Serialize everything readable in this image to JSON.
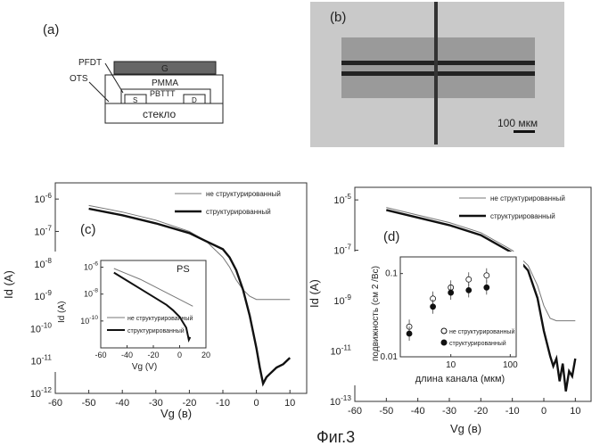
{
  "figure_caption": "Фиг.3",
  "panel_a": {
    "label": "(a)",
    "layers": {
      "gate": "G",
      "dielectric": "PMMA",
      "semiconductor": "PBTTT",
      "source": "S",
      "drain": "D",
      "substrate": "стекло"
    },
    "callouts": [
      "PFDT",
      "OTS"
    ]
  },
  "panel_b": {
    "label": "(b)",
    "scale_bar": "100 мкм"
  },
  "chart_data": [
    {
      "type": "line",
      "panel": "(c)",
      "xlabel": "Vg (в)",
      "ylabel": "Id (A)",
      "xlim": [
        -60,
        15
      ],
      "ylim_exp": [
        -12,
        -5.5
      ],
      "log_y": true,
      "x_ticks": [
        "-60",
        "-50",
        "-40",
        "-30",
        "-20",
        "-10",
        "0",
        "10"
      ],
      "y_ticks": [
        "10-6",
        "10-7",
        "10-8",
        "10-9",
        "10-10",
        "10-11",
        "10-12"
      ],
      "legend_position": "top-right",
      "series": [
        {
          "name": "не структурированный",
          "style": "thin",
          "x": [
            -50,
            -40,
            -30,
            -20,
            -15,
            -10,
            -8,
            -6,
            -4,
            -2,
            0,
            5,
            10
          ],
          "y_exp": [
            -6.2,
            -6.4,
            -6.65,
            -7.0,
            -7.3,
            -7.8,
            -8.1,
            -8.5,
            -8.8,
            -9.0,
            -9.1,
            -9.1,
            -9.1
          ]
        },
        {
          "name": "структурированный",
          "style": "thick",
          "x": [
            -50,
            -40,
            -30,
            -20,
            -15,
            -10,
            -8,
            -6,
            -4,
            -2,
            0,
            1,
            2,
            3,
            4,
            6,
            8,
            10
          ],
          "y_exp": [
            -6.3,
            -6.5,
            -6.75,
            -7.05,
            -7.3,
            -7.55,
            -7.8,
            -8.2,
            -8.8,
            -9.6,
            -10.6,
            -11.2,
            -11.7,
            -11.5,
            -11.4,
            -11.2,
            -11.1,
            -10.9
          ]
        }
      ],
      "inset": {
        "label": "PS",
        "xlabel": "Vg (V)",
        "ylabel": "Id (A)",
        "xlim": [
          -60,
          20
        ],
        "ylim_exp": [
          -12,
          -5.5
        ],
        "x_ticks": [
          "-60",
          "-40",
          "-20",
          "0",
          "20"
        ],
        "y_ticks": [
          "10-6",
          "10-8",
          "10-10"
        ],
        "legend": [
          "не структурированный",
          "структурированный"
        ],
        "series": [
          {
            "name": "не структурированный",
            "style": "thin",
            "x": [
              -50,
              -40,
              -30,
              -20,
              -10,
              0,
              10
            ],
            "y_exp": [
              -6.1,
              -6.5,
              -6.9,
              -7.4,
              -7.9,
              -8.4,
              -8.9
            ]
          },
          {
            "name": "структурированный",
            "style": "thick",
            "x": [
              -50,
              -40,
              -30,
              -20,
              -10,
              -5,
              0,
              5,
              7,
              8
            ],
            "y_exp": [
              -6.4,
              -7.0,
              -7.6,
              -8.2,
              -8.8,
              -9.2,
              -9.7,
              -10.5,
              -11.4,
              -11.2
            ]
          }
        ]
      }
    },
    {
      "type": "line",
      "panel": "(d)",
      "xlabel": "Vg (в)",
      "ylabel": "Id (A)",
      "xlim": [
        -60,
        15
      ],
      "ylim_exp": [
        -13,
        -4.5
      ],
      "log_y": true,
      "x_ticks": [
        "-60",
        "-50",
        "-40",
        "-30",
        "-20",
        "-10",
        "0",
        "10"
      ],
      "y_ticks": [
        "10-5",
        "10-7",
        "10-9",
        "10-11",
        "10-13"
      ],
      "legend_position": "top-right",
      "series": [
        {
          "name": "не структурированный",
          "style": "thin",
          "x": [
            -50,
            -40,
            -30,
            -20,
            -10,
            -5,
            -2,
            0,
            2,
            4,
            6,
            8,
            10
          ],
          "y_exp": [
            -5.3,
            -5.6,
            -5.9,
            -6.3,
            -7.0,
            -7.6,
            -8.4,
            -9.2,
            -9.7,
            -9.8,
            -9.8,
            -9.8,
            -9.8
          ]
        },
        {
          "name": "структурированный",
          "style": "thick",
          "x": [
            -50,
            -40,
            -30,
            -20,
            -10,
            -5,
            -2,
            0,
            2,
            3,
            4,
            5,
            6,
            7,
            8,
            9,
            10
          ],
          "y_exp": [
            -5.4,
            -5.7,
            -6.0,
            -6.4,
            -7.1,
            -7.8,
            -8.9,
            -10.2,
            -11.2,
            -11.6,
            -11.3,
            -12.2,
            -11.5,
            -12.6,
            -11.8,
            -12.0,
            -11.3
          ]
        }
      ],
      "inset": {
        "xlabel": "длина канала (мкм)",
        "ylabel": "подвижность (см 2 /Вс)",
        "log_x": true,
        "log_y": true,
        "xlim_exp": [
          0.15,
          2.1
        ],
        "ylim_exp": [
          -2,
          -0.8
        ],
        "x_ticks": [
          "10",
          "100"
        ],
        "y_ticks": [
          "0.1",
          "0.01"
        ],
        "legend": [
          "не структурированный",
          "структурированный"
        ],
        "series": [
          {
            "name": "не структурированный",
            "marker": "open",
            "x": [
              2,
              5,
              10,
              20,
              40
            ],
            "y": [
              0.023,
              0.05,
              0.068,
              0.085,
              0.095
            ]
          },
          {
            "name": "структурированный",
            "marker": "filled",
            "x": [
              2,
              5,
              10,
              20,
              40
            ],
            "y": [
              0.019,
              0.04,
              0.059,
              0.063,
              0.068
            ]
          }
        ]
      }
    }
  ]
}
